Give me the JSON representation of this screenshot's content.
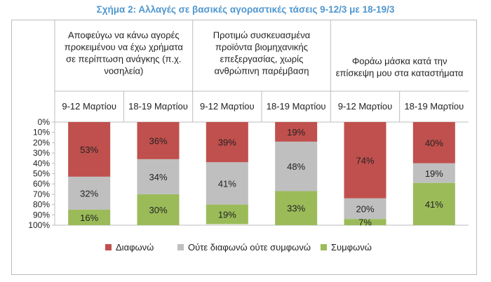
{
  "chart_data": {
    "type": "bar",
    "stacked": true,
    "title": "Σχήμα 2: Αλλαγές σε βασικές αγοραστικές τάσεις 9-12/3 με 18-19/3",
    "groups": [
      {
        "lines": [
          "Αποφεύγω να κάνω αγορές",
          "προκειμένου να έχω χρήματα",
          "σε περίπτωση ανάγκης (π.χ.",
          "νοσηλεία)"
        ]
      },
      {
        "lines": [
          "Προτιμώ συσκευασμένα",
          "προϊόντα βιομηχανικής",
          "επεξεργασίας, χωρίς",
          "ανθρώπινη παρέμβαση"
        ]
      },
      {
        "lines": [
          "Φοράω μάσκα κατά την",
          "επίσκεψη μου στα καταστήματα"
        ]
      }
    ],
    "categories": [
      "9-12 Μαρτίου",
      "18-19 Μαρτίου",
      "9-12 Μαρτίου",
      "18-19 Μαρτίου",
      "9-12 Μαρτίου",
      "18-19 Μαρτίου"
    ],
    "series": [
      {
        "name": "Διαφωνώ",
        "color": "#c0504d",
        "values": [
          53,
          36,
          39,
          19,
          74,
          40
        ],
        "labels": [
          "53%",
          "36%",
          "39%",
          "19%",
          "74%",
          "40%"
        ]
      },
      {
        "name": "Ούτε διαφωνώ ούτε συμφωνώ",
        "color": "#bfbfbf",
        "values": [
          32,
          34,
          41,
          48,
          20,
          19
        ],
        "labels": [
          "32%",
          "34%",
          "41%",
          "48%",
          "20%",
          "19%"
        ]
      },
      {
        "name": "Συμφωνώ",
        "color": "#9bbb59",
        "values": [
          16,
          30,
          19,
          33,
          7,
          41
        ],
        "labels": [
          "16%",
          "30%",
          "19%",
          "33%",
          "7%",
          "41%"
        ]
      }
    ],
    "yticks": [
      "0%",
      "10%",
      "20%",
      "30%",
      "40%",
      "50%",
      "60%",
      "70%",
      "80%",
      "90%",
      "100%"
    ],
    "ylim": [
      0,
      100
    ],
    "y_inverted": true,
    "legend_position": "bottom",
    "grid": false
  }
}
